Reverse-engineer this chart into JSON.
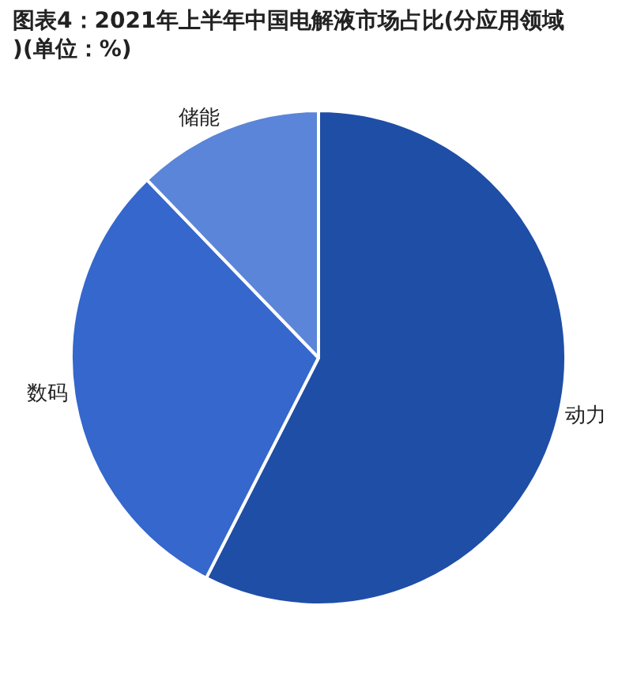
{
  "chart_data": {
    "type": "pie",
    "title": "图表4：2021年上半年中国电解液市场占比(分应用领域)(单位：%)",
    "categories": [
      "动力",
      "数码",
      "储能"
    ],
    "values": [
      57.5,
      30.3,
      12.2
    ],
    "colors": [
      "#1f4ea6",
      "#3567cc",
      "#5b85d8"
    ],
    "legend": false
  }
}
